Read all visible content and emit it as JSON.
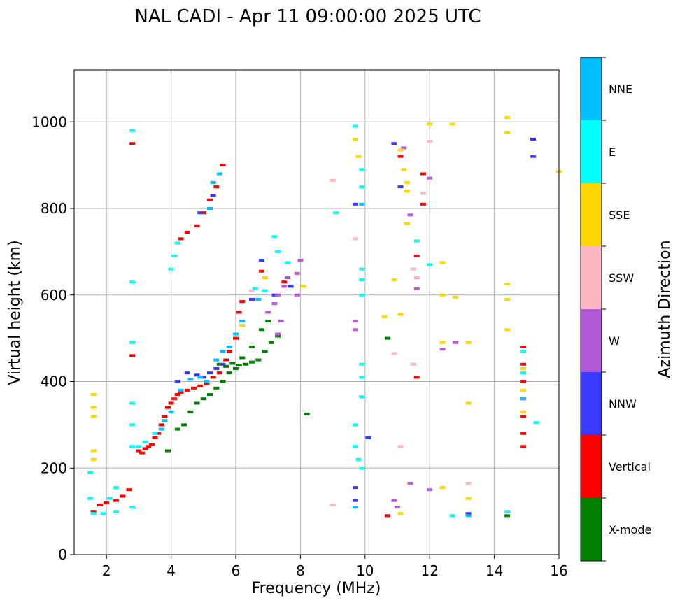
{
  "chart_data": {
    "type": "scatter",
    "title": "NAL CADI - Apr 11 09:00:00 2025 UTC",
    "xlabel": "Frequency (MHz)",
    "ylabel": "Virtual height (km)",
    "xlim": [
      1,
      16
    ],
    "ylim": [
      0,
      1120
    ],
    "xticks": [
      2,
      4,
      6,
      8,
      10,
      12,
      14,
      16
    ],
    "yticks": [
      0,
      200,
      400,
      600,
      800,
      1000
    ],
    "grid": true,
    "colorbar": {
      "label": "Azimuth Direction",
      "categories": [
        "X-mode",
        "Vertical",
        "NNW",
        "W",
        "SSW",
        "SSE",
        "E",
        "NNE"
      ],
      "colors": [
        "#008000",
        "#ff0000",
        "#3a3aff",
        "#b459d6",
        "#ffb6c1",
        "#ffd700",
        "#00ffff",
        "#00bfff"
      ]
    },
    "series": [
      {
        "name": "X-mode",
        "points": [
          [
            5.5,
            440
          ],
          [
            5.7,
            435
          ],
          [
            5.9,
            442
          ],
          [
            6.1,
            438
          ],
          [
            6.3,
            440
          ],
          [
            6.5,
            445
          ],
          [
            6.7,
            450
          ],
          [
            6.9,
            470
          ],
          [
            7.1,
            490
          ],
          [
            7.3,
            505
          ],
          [
            4.4,
            300
          ],
          [
            4.6,
            330
          ],
          [
            4.8,
            350
          ],
          [
            5.0,
            360
          ],
          [
            5.2,
            370
          ],
          [
            5.4,
            385
          ],
          [
            5.6,
            400
          ],
          [
            5.8,
            420
          ],
          [
            6.0,
            430
          ],
          [
            6.2,
            455
          ],
          [
            6.5,
            480
          ],
          [
            6.8,
            520
          ],
          [
            7.0,
            540
          ],
          [
            10.7,
            500
          ],
          [
            8.2,
            325
          ],
          [
            14.4,
            90
          ],
          [
            3.9,
            240
          ],
          [
            4.2,
            290
          ]
        ]
      },
      {
        "name": "Vertical",
        "points": [
          [
            3.0,
            240
          ],
          [
            3.1,
            235
          ],
          [
            3.2,
            245
          ],
          [
            3.3,
            250
          ],
          [
            3.4,
            255
          ],
          [
            3.5,
            270
          ],
          [
            3.6,
            280
          ],
          [
            3.7,
            300
          ],
          [
            3.8,
            320
          ],
          [
            3.9,
            340
          ],
          [
            4.0,
            350
          ],
          [
            4.1,
            360
          ],
          [
            4.2,
            370
          ],
          [
            4.3,
            375
          ],
          [
            4.5,
            380
          ],
          [
            4.7,
            385
          ],
          [
            4.9,
            390
          ],
          [
            5.1,
            395
          ],
          [
            5.3,
            410
          ],
          [
            5.5,
            420
          ],
          [
            5.7,
            450
          ],
          [
            5.8,
            470
          ],
          [
            6.0,
            500
          ],
          [
            6.1,
            560
          ],
          [
            6.2,
            585
          ],
          [
            4.3,
            730
          ],
          [
            4.5,
            745
          ],
          [
            4.8,
            760
          ],
          [
            5.0,
            790
          ],
          [
            5.2,
            820
          ],
          [
            5.4,
            850
          ],
          [
            5.6,
            900
          ],
          [
            2.8,
            950
          ],
          [
            2.8,
            460
          ],
          [
            1.6,
            100
          ],
          [
            1.8,
            115
          ],
          [
            2.0,
            120
          ],
          [
            2.3,
            125
          ],
          [
            2.5,
            135
          ],
          [
            2.7,
            150
          ],
          [
            14.9,
            480
          ],
          [
            14.9,
            440
          ],
          [
            14.9,
            400
          ],
          [
            14.9,
            360
          ],
          [
            14.9,
            320
          ],
          [
            14.9,
            280
          ],
          [
            14.9,
            250
          ],
          [
            11.6,
            690
          ],
          [
            11.6,
            410
          ],
          [
            11.8,
            880
          ],
          [
            11.8,
            810
          ],
          [
            10.7,
            90
          ],
          [
            11.1,
            920
          ],
          [
            6.8,
            655
          ],
          [
            7.5,
            630
          ]
        ]
      },
      {
        "name": "NNW",
        "points": [
          [
            4.5,
            420
          ],
          [
            4.8,
            415
          ],
          [
            5.0,
            410
          ],
          [
            5.2,
            420
          ],
          [
            5.4,
            430
          ],
          [
            5.6,
            440
          ],
          [
            4.2,
            400
          ],
          [
            6.5,
            590
          ],
          [
            7.2,
            600
          ],
          [
            9.7,
            810
          ],
          [
            9.7,
            155
          ],
          [
            9.7,
            125
          ],
          [
            10.1,
            270
          ],
          [
            13.2,
            95
          ],
          [
            15.2,
            920
          ],
          [
            15.2,
            960
          ],
          [
            10.9,
            950
          ],
          [
            11.1,
            850
          ],
          [
            4.9,
            790
          ],
          [
            5.3,
            830
          ],
          [
            6.8,
            680
          ],
          [
            7.7,
            620
          ]
        ]
      },
      {
        "name": "W",
        "points": [
          [
            7.0,
            560
          ],
          [
            7.2,
            580
          ],
          [
            7.3,
            600
          ],
          [
            7.5,
            620
          ],
          [
            7.4,
            540
          ],
          [
            7.3,
            510
          ],
          [
            7.6,
            640
          ],
          [
            7.9,
            600
          ],
          [
            7.9,
            650
          ],
          [
            8.0,
            680
          ],
          [
            12.4,
            475
          ],
          [
            12.8,
            490
          ],
          [
            11.4,
            165
          ],
          [
            12.0,
            150
          ],
          [
            9.7,
            540
          ],
          [
            9.7,
            520
          ],
          [
            10.9,
            125
          ],
          [
            11.4,
            785
          ],
          [
            12.0,
            870
          ],
          [
            11.6,
            615
          ],
          [
            11.2,
            940
          ],
          [
            11.0,
            110
          ]
        ]
      },
      {
        "name": "SSW",
        "points": [
          [
            9.0,
            865
          ],
          [
            9.0,
            115
          ],
          [
            9.7,
            730
          ],
          [
            10.9,
            465
          ],
          [
            11.1,
            250
          ],
          [
            11.5,
            440
          ],
          [
            11.8,
            835
          ],
          [
            12.0,
            955
          ],
          [
            13.2,
            165
          ],
          [
            11.5,
            660
          ],
          [
            11.6,
            640
          ],
          [
            6.5,
            610
          ]
        ]
      },
      {
        "name": "SSE",
        "points": [
          [
            1.6,
            370
          ],
          [
            1.6,
            340
          ],
          [
            1.6,
            320
          ],
          [
            1.6,
            240
          ],
          [
            1.6,
            220
          ],
          [
            9.7,
            960
          ],
          [
            9.8,
            920
          ],
          [
            10.6,
            550
          ],
          [
            10.9,
            635
          ],
          [
            11.1,
            935
          ],
          [
            11.2,
            890
          ],
          [
            11.3,
            860
          ],
          [
            11.3,
            840
          ],
          [
            11.3,
            765
          ],
          [
            11.1,
            555
          ],
          [
            11.1,
            95
          ],
          [
            12.0,
            995
          ],
          [
            12.4,
            675
          ],
          [
            12.4,
            600
          ],
          [
            12.4,
            490
          ],
          [
            12.4,
            155
          ],
          [
            12.7,
            995
          ],
          [
            12.8,
            595
          ],
          [
            13.2,
            490
          ],
          [
            13.2,
            350
          ],
          [
            13.2,
            130
          ],
          [
            12.7,
            90
          ],
          [
            14.4,
            1010
          ],
          [
            14.4,
            975
          ],
          [
            14.4,
            625
          ],
          [
            14.4,
            590
          ],
          [
            14.4,
            520
          ],
          [
            16.0,
            885
          ],
          [
            14.9,
            430
          ],
          [
            14.9,
            380
          ],
          [
            14.9,
            330
          ],
          [
            6.2,
            530
          ],
          [
            6.9,
            640
          ],
          [
            8.1,
            620
          ]
        ]
      },
      {
        "name": "E",
        "points": [
          [
            1.5,
            190
          ],
          [
            1.5,
            130
          ],
          [
            1.6,
            95
          ],
          [
            1.9,
            95
          ],
          [
            2.1,
            130
          ],
          [
            2.3,
            100
          ],
          [
            2.3,
            155
          ],
          [
            2.8,
            980
          ],
          [
            2.8,
            630
          ],
          [
            2.8,
            490
          ],
          [
            2.8,
            350
          ],
          [
            2.8,
            300
          ],
          [
            2.8,
            250
          ],
          [
            2.8,
            110
          ],
          [
            3.0,
            250
          ],
          [
            3.2,
            260
          ],
          [
            3.5,
            280
          ],
          [
            4.0,
            660
          ],
          [
            4.1,
            690
          ],
          [
            4.2,
            720
          ],
          [
            6.6,
            615
          ],
          [
            6.9,
            610
          ],
          [
            7.2,
            735
          ],
          [
            7.3,
            700
          ],
          [
            7.6,
            675
          ],
          [
            9.7,
            990
          ],
          [
            9.9,
            890
          ],
          [
            9.9,
            850
          ],
          [
            9.9,
            660
          ],
          [
            9.9,
            635
          ],
          [
            9.9,
            600
          ],
          [
            9.9,
            440
          ],
          [
            9.9,
            410
          ],
          [
            9.9,
            365
          ],
          [
            9.7,
            300
          ],
          [
            9.7,
            250
          ],
          [
            9.8,
            220
          ],
          [
            9.9,
            200
          ],
          [
            9.1,
            790
          ],
          [
            11.6,
            725
          ],
          [
            12.0,
            670
          ],
          [
            12.7,
            90
          ],
          [
            14.4,
            100
          ],
          [
            15.3,
            305
          ],
          [
            14.9,
            470
          ],
          [
            14.9,
            420
          ]
        ]
      },
      {
        "name": "NNE",
        "points": [
          [
            3.7,
            290
          ],
          [
            3.8,
            310
          ],
          [
            4.0,
            330
          ],
          [
            4.3,
            380
          ],
          [
            4.6,
            405
          ],
          [
            4.9,
            410
          ],
          [
            5.1,
            400
          ],
          [
            5.4,
            450
          ],
          [
            5.6,
            470
          ],
          [
            5.8,
            480
          ],
          [
            6.0,
            510
          ],
          [
            6.2,
            540
          ],
          [
            6.7,
            590
          ],
          [
            5.3,
            860
          ],
          [
            5.5,
            880
          ],
          [
            5.2,
            800
          ],
          [
            9.9,
            810
          ],
          [
            9.7,
            110
          ],
          [
            13.2,
            90
          ],
          [
            14.9,
            360
          ]
        ]
      }
    ]
  }
}
